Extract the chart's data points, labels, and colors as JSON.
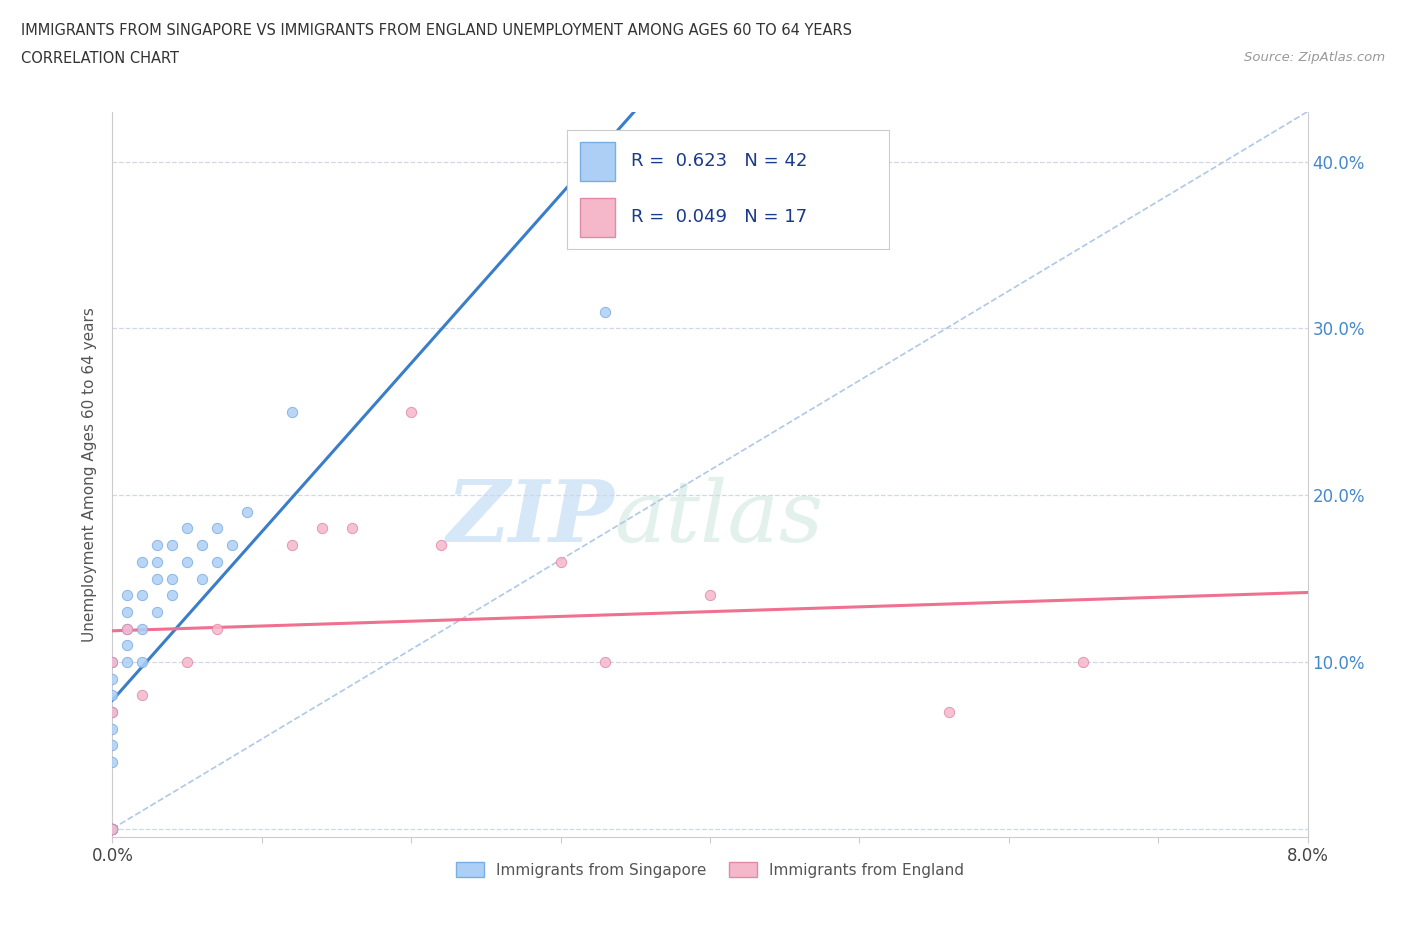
{
  "title_line1": "IMMIGRANTS FROM SINGAPORE VS IMMIGRANTS FROM ENGLAND UNEMPLOYMENT AMONG AGES 60 TO 64 YEARS",
  "title_line2": "CORRELATION CHART",
  "source_text": "Source: ZipAtlas.com",
  "ylabel": "Unemployment Among Ages 60 to 64 years",
  "xlim": [
    0.0,
    0.08
  ],
  "ylim": [
    -0.005,
    0.43
  ],
  "xticks": [
    0.0,
    0.01,
    0.02,
    0.03,
    0.04,
    0.05,
    0.06,
    0.07,
    0.08
  ],
  "xtick_labels": [
    "0.0%",
    "",
    "",
    "",
    "",
    "",
    "",
    "",
    "8.0%"
  ],
  "yticks": [
    0.0,
    0.1,
    0.2,
    0.3,
    0.4
  ],
  "ytick_labels_right": [
    "",
    "10.0%",
    "20.0%",
    "30.0%",
    "40.0%"
  ],
  "watermark_zip": "ZIP",
  "watermark_atlas": "atlas",
  "singapore_R": 0.623,
  "singapore_N": 42,
  "england_R": 0.049,
  "england_N": 17,
  "singapore_color": "#aecff5",
  "singapore_edge": "#7aaee0",
  "england_color": "#f5b8cb",
  "england_edge": "#e08aa8",
  "singapore_line_color": "#3a7dc9",
  "england_line_color": "#f07090",
  "diag_line_color": "#b0c8e8",
  "grid_color": "#d0d8e8",
  "singapore_x": [
    0.0,
    0.0,
    0.0,
    0.0,
    0.0,
    0.0,
    0.0,
    0.0,
    0.0,
    0.0,
    0.0,
    0.0,
    0.0,
    0.0,
    0.0,
    0.0,
    0.001,
    0.001,
    0.001,
    0.001,
    0.001,
    0.002,
    0.002,
    0.002,
    0.002,
    0.003,
    0.003,
    0.003,
    0.003,
    0.004,
    0.004,
    0.004,
    0.005,
    0.005,
    0.006,
    0.006,
    0.007,
    0.007,
    0.008,
    0.009,
    0.012,
    0.033
  ],
  "singapore_y": [
    0.0,
    0.0,
    0.0,
    0.0,
    0.0,
    0.0,
    0.0,
    0.0,
    0.0,
    0.04,
    0.05,
    0.06,
    0.07,
    0.08,
    0.09,
    0.1,
    0.1,
    0.11,
    0.12,
    0.13,
    0.14,
    0.1,
    0.12,
    0.14,
    0.16,
    0.13,
    0.15,
    0.16,
    0.17,
    0.14,
    0.15,
    0.17,
    0.16,
    0.18,
    0.15,
    0.17,
    0.16,
    0.18,
    0.17,
    0.19,
    0.25,
    0.31
  ],
  "england_x": [
    0.0,
    0.0,
    0.0,
    0.001,
    0.002,
    0.005,
    0.007,
    0.012,
    0.014,
    0.016,
    0.02,
    0.022,
    0.03,
    0.033,
    0.04,
    0.056,
    0.065
  ],
  "england_y": [
    0.0,
    0.07,
    0.1,
    0.12,
    0.08,
    0.1,
    0.12,
    0.17,
    0.18,
    0.18,
    0.25,
    0.17,
    0.16,
    0.1,
    0.14,
    0.07,
    0.1
  ]
}
